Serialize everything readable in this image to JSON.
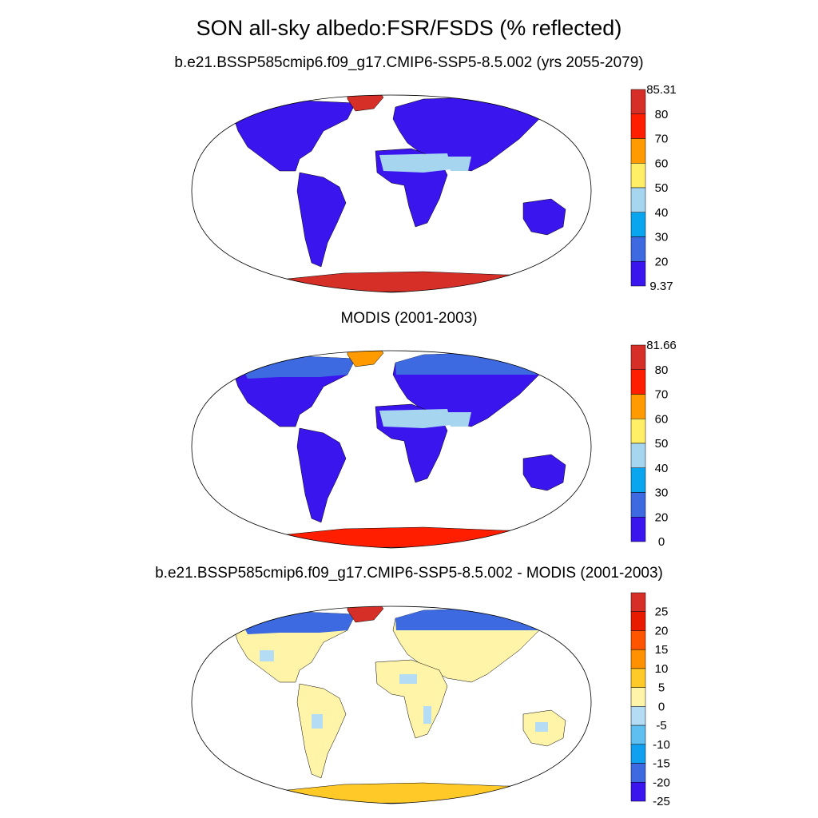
{
  "title": "SON all-sky albedo:FSR/FSDS (% reflected)",
  "panels": [
    {
      "subtitle": "b.e21.BSSP585cmip6.f09_g17.CMIP6-SSP5-8.5.002 (yrs 2055-2079)",
      "colorbar": {
        "labels": [
          "85.31",
          "80",
          "70",
          "60",
          "50",
          "40",
          "30",
          "20",
          "9.37"
        ],
        "colors": [
          "#d62f27",
          "#ff1e00",
          "#ff9a00",
          "#ffee66",
          "#a6d5f0",
          "#0aa5ef",
          "#3d6ae0",
          "#3a15ee"
        ]
      },
      "fields": {
        "ocean": "#ffffff",
        "land": "#3a15ee",
        "antarctica": "#d62f27",
        "greenland": "#d62f27",
        "desert": "#a6d5f0"
      }
    },
    {
      "subtitle": "MODIS (2001-2003)",
      "colorbar": {
        "labels": [
          "81.66",
          "80",
          "70",
          "60",
          "50",
          "40",
          "30",
          "20",
          "0"
        ],
        "colors": [
          "#d62f27",
          "#ff1e00",
          "#ff9a00",
          "#ffee66",
          "#a6d5f0",
          "#0aa5ef",
          "#3d6ae0",
          "#3a15ee"
        ]
      },
      "fields": {
        "ocean": "#ffffff",
        "land": "#3a15ee",
        "antarctica": "#ff1e00",
        "greenland": "#ff9a00",
        "desert": "#a6d5f0",
        "north": "#3d6ae0"
      }
    },
    {
      "subtitle": "b.e21.BSSP585cmip6.f09_g17.CMIP6-SSP5-8.5.002 - MODIS (2001-2003)",
      "colorbar": {
        "labels": [
          "25",
          "20",
          "15",
          "10",
          "5",
          "0",
          "-5",
          "-10",
          "-15",
          "-20",
          "-25"
        ],
        "colors": [
          "#d62f27",
          "#e81a00",
          "#ff5500",
          "#ff9000",
          "#ffc928",
          "#fff4a8",
          "#b4dcf4",
          "#5fbff0",
          "#10a0ef",
          "#3d6ae0",
          "#3a15ee"
        ]
      },
      "fields": {
        "ocean": "#ffffff",
        "land": "#fff4a8",
        "antarctica": "#ffc928",
        "greenland": "#d62f27",
        "north": "#3d6ae0",
        "patch": "#b4dcf4"
      }
    }
  ]
}
